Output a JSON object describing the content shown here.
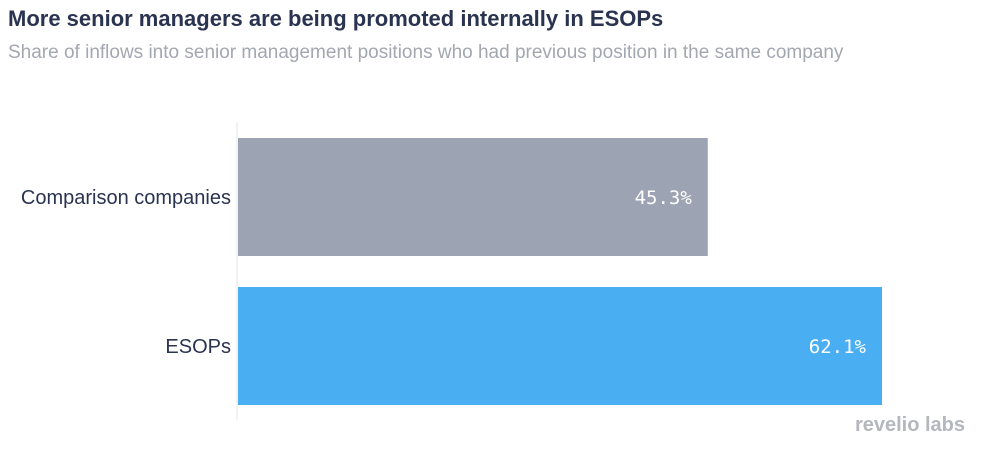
{
  "chart_data": {
    "type": "bar",
    "orientation": "horizontal",
    "title": "More senior managers are being promoted internally in ESOPs",
    "subtitle": "Share of inflows into senior management positions who had previous position in the same company",
    "categories": [
      "Comparison companies",
      "ESOPs"
    ],
    "values": [
      45.3,
      62.1
    ],
    "value_labels": [
      "45.3%",
      "62.1%"
    ],
    "colors": [
      "#9ca3b3",
      "#4aaef2"
    ],
    "xlim": [
      0,
      70
    ],
    "grid": false
  },
  "branding": {
    "logo": "revelio labs"
  }
}
